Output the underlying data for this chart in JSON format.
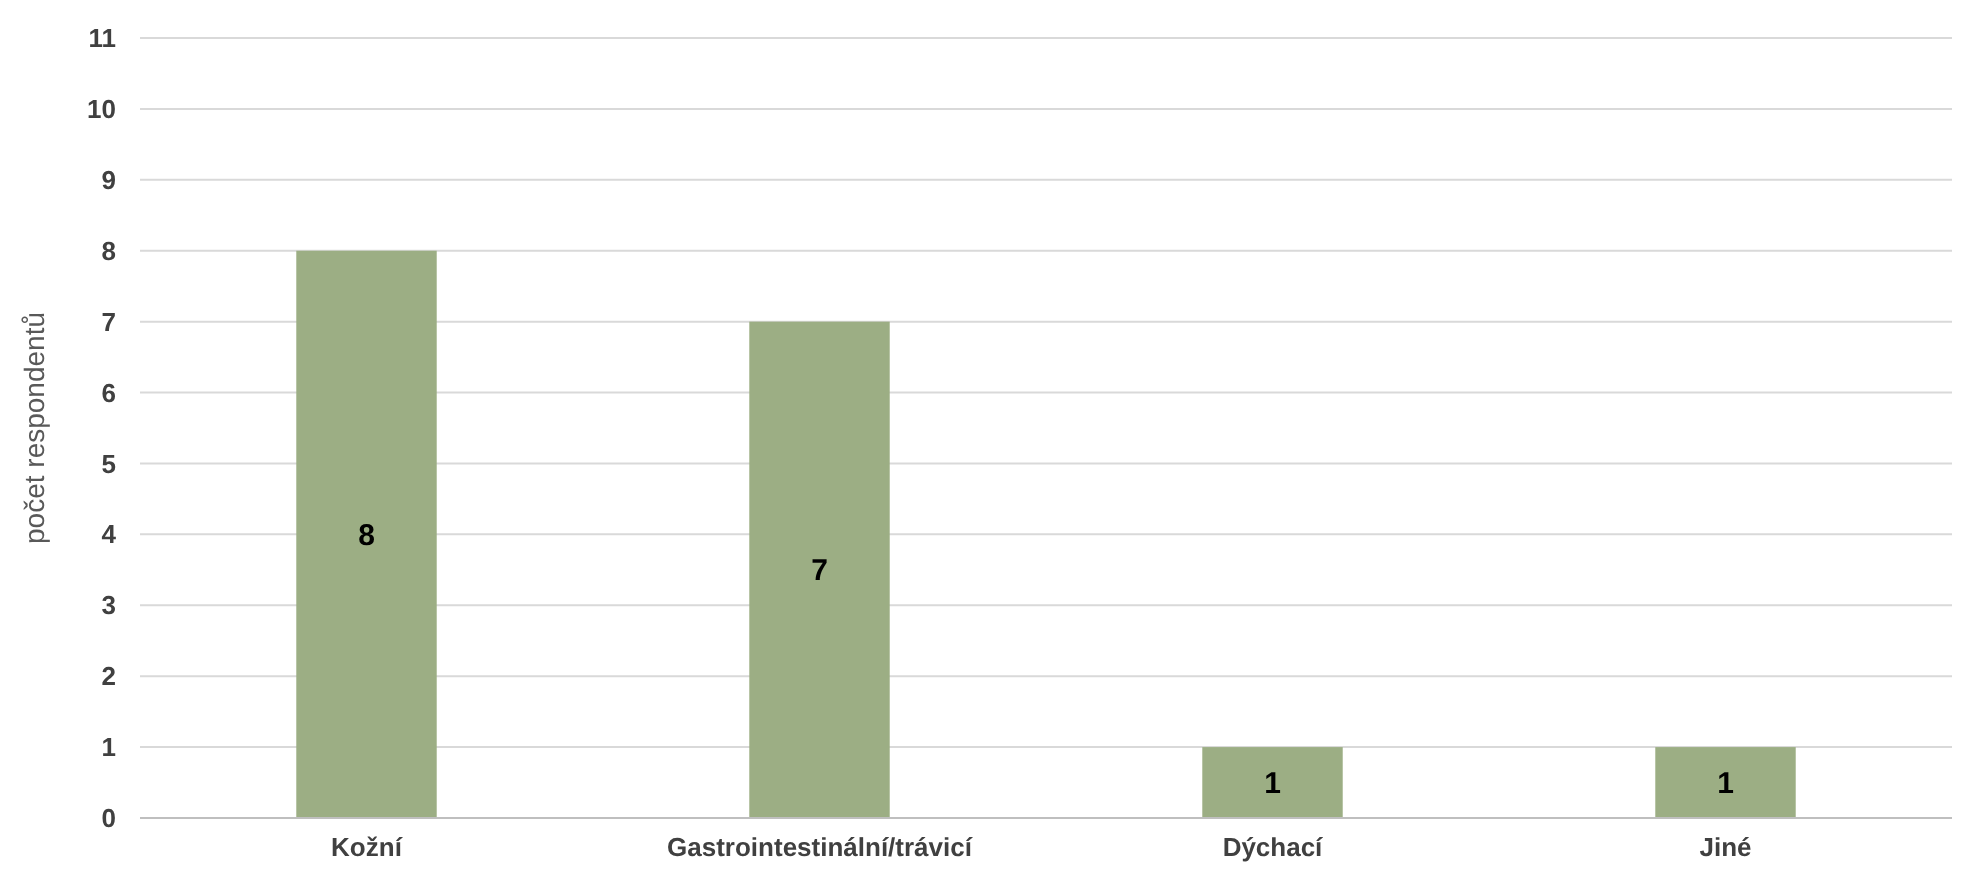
{
  "chart_data": {
    "type": "bar",
    "ylabel": "počet respondentů",
    "categories": [
      "Kožní",
      "Gastrointestinální/trávicí",
      "Dýchací",
      "Jiné"
    ],
    "values": [
      8,
      7,
      1,
      1
    ],
    "color": "#9cae84",
    "ylim": [
      0,
      11
    ],
    "yticks": [
      0,
      1,
      2,
      3,
      4,
      5,
      6,
      7,
      8,
      9,
      10,
      11
    ],
    "grid": "y",
    "data_labels": true
  }
}
